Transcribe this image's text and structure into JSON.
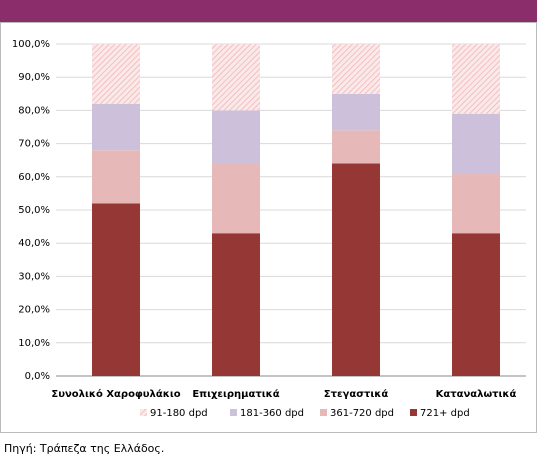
{
  "chart_data": {
    "type": "stacked-bar",
    "categories": [
      "Συνολικό Χαροφυλάκιο",
      "Επιχειρηματικά",
      "Στεγαστικά",
      "Καταναλωτικά"
    ],
    "series": [
      {
        "name": "91-180 dpd",
        "color": "#f2c4c4",
        "hatch": true,
        "values": [
          18,
          20,
          15,
          21
        ]
      },
      {
        "name": "181-360 dpd",
        "color": "#ccc0da",
        "values": [
          14,
          16,
          11,
          18
        ]
      },
      {
        "name": "361-720 dpd",
        "color": "#e6b9b8",
        "values": [
          16,
          21,
          10,
          18
        ]
      },
      {
        "name": "721+ dpd",
        "color": "#953735",
        "values": [
          52,
          43,
          64,
          43
        ]
      }
    ],
    "ylim": [
      0,
      100
    ],
    "yticks": [
      {
        "value": 0,
        "label": "0,0%"
      },
      {
        "value": 10,
        "label": "10,0%"
      },
      {
        "value": 20,
        "label": "20,0%"
      },
      {
        "value": 30,
        "label": "30,0%"
      },
      {
        "value": 40,
        "label": "40,0%"
      },
      {
        "value": 50,
        "label": "50,0%"
      },
      {
        "value": 60,
        "label": "60,0%"
      },
      {
        "value": 70,
        "label": "70,0%"
      },
      {
        "value": 80,
        "label": "80,0%"
      },
      {
        "value": 90,
        "label": "90,0%"
      },
      {
        "value": 100,
        "label": "100,0%"
      }
    ],
    "grid": true,
    "legend": "bottom",
    "source": "Πηγή: Τράπεζα της Ελλάδος."
  }
}
